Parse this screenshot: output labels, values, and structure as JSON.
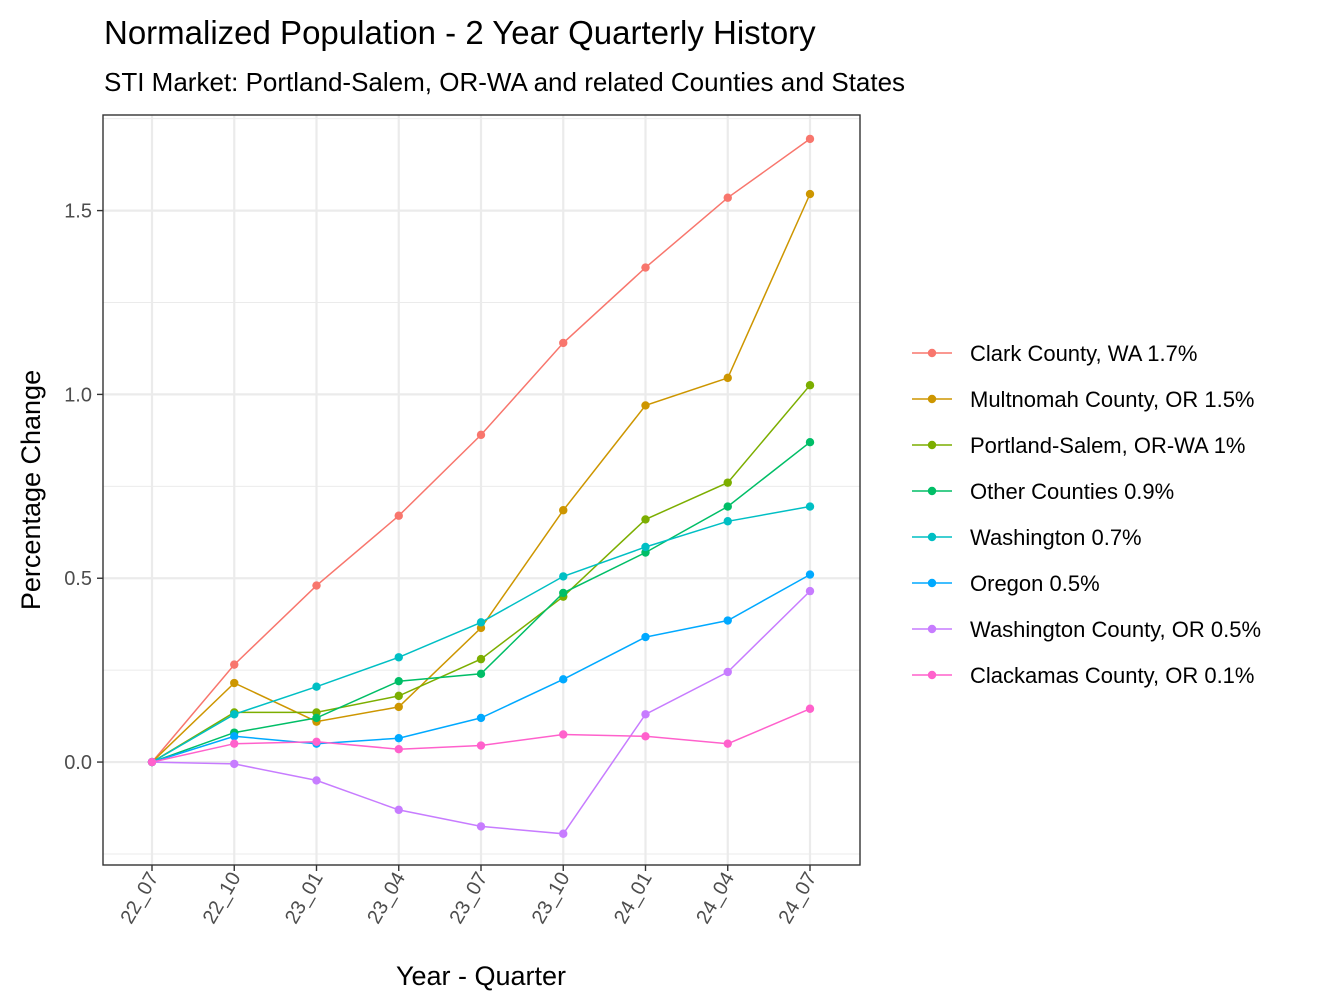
{
  "chart_data": {
    "type": "line",
    "title": "Normalized Population - 2 Year Quarterly History",
    "subtitle": "STI Market: Portland-Salem, OR-WA and related Counties and States",
    "xlabel": "Year - Quarter",
    "ylabel": "Percentage Change",
    "categories": [
      "22_07",
      "22_10",
      "23_01",
      "23_04",
      "23_07",
      "23_10",
      "24_01",
      "24_04",
      "24_07"
    ],
    "ylim": [
      -0.28,
      1.76
    ],
    "yticks": [
      0.0,
      0.5,
      1.0,
      1.5
    ],
    "ytick_labels": [
      "0.0",
      "0.5",
      "1.0",
      "1.5"
    ],
    "grid": true,
    "legend_position": "right",
    "series": [
      {
        "name": "Clark County, WA 1.7%",
        "color": "#F8766D",
        "values": [
          0,
          0.265,
          0.48,
          0.67,
          0.89,
          1.14,
          1.345,
          1.535,
          1.695
        ]
      },
      {
        "name": "Multnomah County, OR 1.5%",
        "color": "#CD9600",
        "values": [
          0,
          0.215,
          0.11,
          0.15,
          0.365,
          0.685,
          0.97,
          1.045,
          1.545
        ]
      },
      {
        "name": "Portland-Salem, OR-WA 1%",
        "color": "#7CAE00",
        "values": [
          0,
          0.135,
          0.135,
          0.18,
          0.28,
          0.45,
          0.66,
          0.76,
          1.025
        ]
      },
      {
        "name": "Other Counties 0.9%",
        "color": "#00BE67",
        "values": [
          0,
          0.08,
          0.12,
          0.22,
          0.24,
          0.46,
          0.57,
          0.695,
          0.87
        ]
      },
      {
        "name": "Washington 0.7%",
        "color": "#00BFC4",
        "values": [
          0,
          0.13,
          0.205,
          0.285,
          0.38,
          0.505,
          0.585,
          0.655,
          0.695
        ]
      },
      {
        "name": "Oregon 0.5%",
        "color": "#00A9FF",
        "values": [
          0,
          0.07,
          0.05,
          0.065,
          0.12,
          0.225,
          0.34,
          0.385,
          0.51
        ]
      },
      {
        "name": "Washington County, OR 0.5%",
        "color": "#C77CFF",
        "values": [
          0,
          -0.005,
          -0.05,
          -0.13,
          -0.175,
          -0.195,
          0.13,
          0.245,
          0.465
        ]
      },
      {
        "name": "Clackamas County, OR 0.1%",
        "color": "#FF61CC",
        "values": [
          0,
          0.05,
          0.055,
          0.035,
          0.045,
          0.075,
          0.07,
          0.05,
          0.145
        ]
      }
    ]
  }
}
